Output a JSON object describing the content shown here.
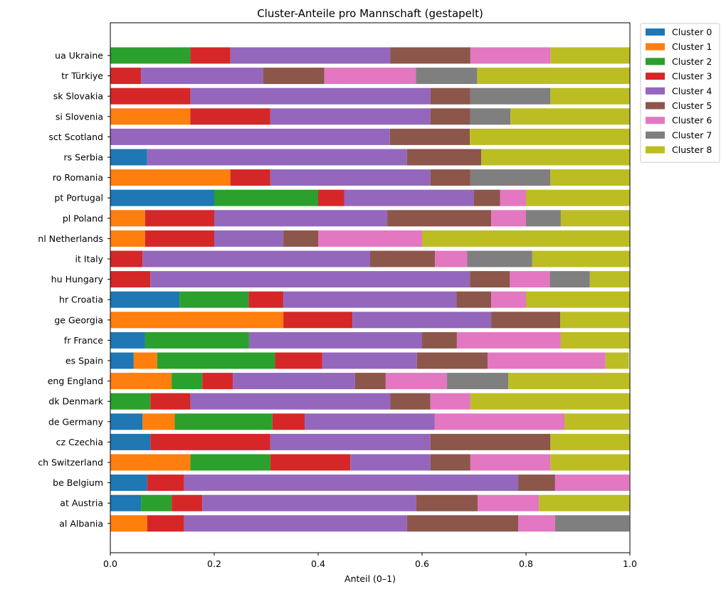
{
  "chart_data": {
    "type": "bar",
    "orientation": "horizontal",
    "stacked": true,
    "title": "Cluster-Anteile pro Mannschaft (gestapelt)",
    "xlabel": "Anteil (0–1)",
    "ylabel": "",
    "xlim": [
      0,
      1.0
    ],
    "xticks": [
      "0.0",
      "0.2",
      "0.4",
      "0.6",
      "0.8",
      "1.0"
    ],
    "grid": false,
    "legend_position": "top-right outside",
    "categories": [
      "ua Ukraine",
      "tr Türkiye",
      "sk Slovakia",
      "si Slovenia",
      "sct Scotland",
      "rs Serbia",
      "ro Romania",
      "pt Portugal",
      "pl Poland",
      "nl Netherlands",
      "it Italy",
      "hu Hungary",
      "hr Croatia",
      "ge Georgia",
      "fr France",
      "es Spain",
      "eng England",
      "dk Denmark",
      "de Germany",
      "cz Czechia",
      "ch Switzerland",
      "be Belgium",
      "at Austria",
      "al Albania"
    ],
    "series": [
      {
        "name": "Cluster 0",
        "color": "#1f77b4",
        "values": [
          0,
          0,
          0,
          0,
          0,
          0.071,
          0,
          0.2,
          0,
          0,
          0,
          0,
          0.133,
          0,
          0.067,
          0.045,
          0,
          0,
          0.062,
          0.077,
          0,
          0.071,
          0.059,
          0
        ]
      },
      {
        "name": "Cluster 1",
        "color": "#ff7f0e",
        "values": [
          0,
          0,
          0,
          0.154,
          0,
          0,
          0.231,
          0,
          0.067,
          0.067,
          0,
          0,
          0,
          0.333,
          0,
          0.045,
          0.118,
          0,
          0.062,
          0,
          0.154,
          0,
          0,
          0.071
        ]
      },
      {
        "name": "Cluster 2",
        "color": "#2ca02c",
        "values": [
          0.154,
          0,
          0,
          0,
          0,
          0,
          0,
          0.2,
          0,
          0,
          0,
          0,
          0.133,
          0,
          0.2,
          0.227,
          0.059,
          0.077,
          0.188,
          0,
          0.154,
          0,
          0.059,
          0
        ]
      },
      {
        "name": "Cluster 3",
        "color": "#d62728",
        "values": [
          0.077,
          0.059,
          0.154,
          0.154,
          0,
          0,
          0.077,
          0.05,
          0.133,
          0.133,
          0.062,
          0.077,
          0.067,
          0.133,
          0,
          0.091,
          0.059,
          0.077,
          0.062,
          0.231,
          0.154,
          0.071,
          0.059,
          0.071
        ]
      },
      {
        "name": "Cluster 4",
        "color": "#9467bd",
        "values": [
          0.308,
          0.235,
          0.462,
          0.308,
          0.538,
          0.5,
          0.308,
          0.25,
          0.333,
          0.133,
          0.438,
          0.615,
          0.333,
          0.267,
          0.333,
          0.182,
          0.235,
          0.385,
          0.25,
          0.308,
          0.154,
          0.643,
          0.412,
          0.429
        ]
      },
      {
        "name": "Cluster 5",
        "color": "#8c564b",
        "values": [
          0.154,
          0.118,
          0.077,
          0.077,
          0.154,
          0.143,
          0.077,
          0.05,
          0.2,
          0.067,
          0.125,
          0.077,
          0.067,
          0.133,
          0.067,
          0.136,
          0.059,
          0.077,
          0,
          0.231,
          0.077,
          0.071,
          0.118,
          0.214
        ]
      },
      {
        "name": "Cluster 6",
        "color": "#e377c2",
        "values": [
          0.154,
          0.176,
          0,
          0,
          0,
          0,
          0,
          0.05,
          0.067,
          0.2,
          0.062,
          0.077,
          0.067,
          0,
          0.2,
          0.227,
          0.118,
          0.077,
          0.25,
          0,
          0.154,
          0.143,
          0.118,
          0.071
        ]
      },
      {
        "name": "Cluster 7",
        "color": "#7f7f7f",
        "values": [
          0,
          0.118,
          0.154,
          0.077,
          0,
          0,
          0.154,
          0,
          0.067,
          0,
          0.125,
          0.077,
          0,
          0,
          0,
          0,
          0.118,
          0,
          0,
          0,
          0,
          0,
          0,
          0.143
        ]
      },
      {
        "name": "Cluster 8",
        "color": "#bcbd22",
        "values": [
          0.154,
          0.294,
          0.154,
          0.231,
          0.308,
          0.286,
          0.154,
          0.2,
          0.133,
          0.4,
          0.188,
          0.077,
          0.2,
          0.133,
          0.133,
          0.045,
          0.235,
          0.308,
          0.125,
          0.154,
          0.154,
          0,
          0.176,
          0
        ]
      }
    ]
  }
}
